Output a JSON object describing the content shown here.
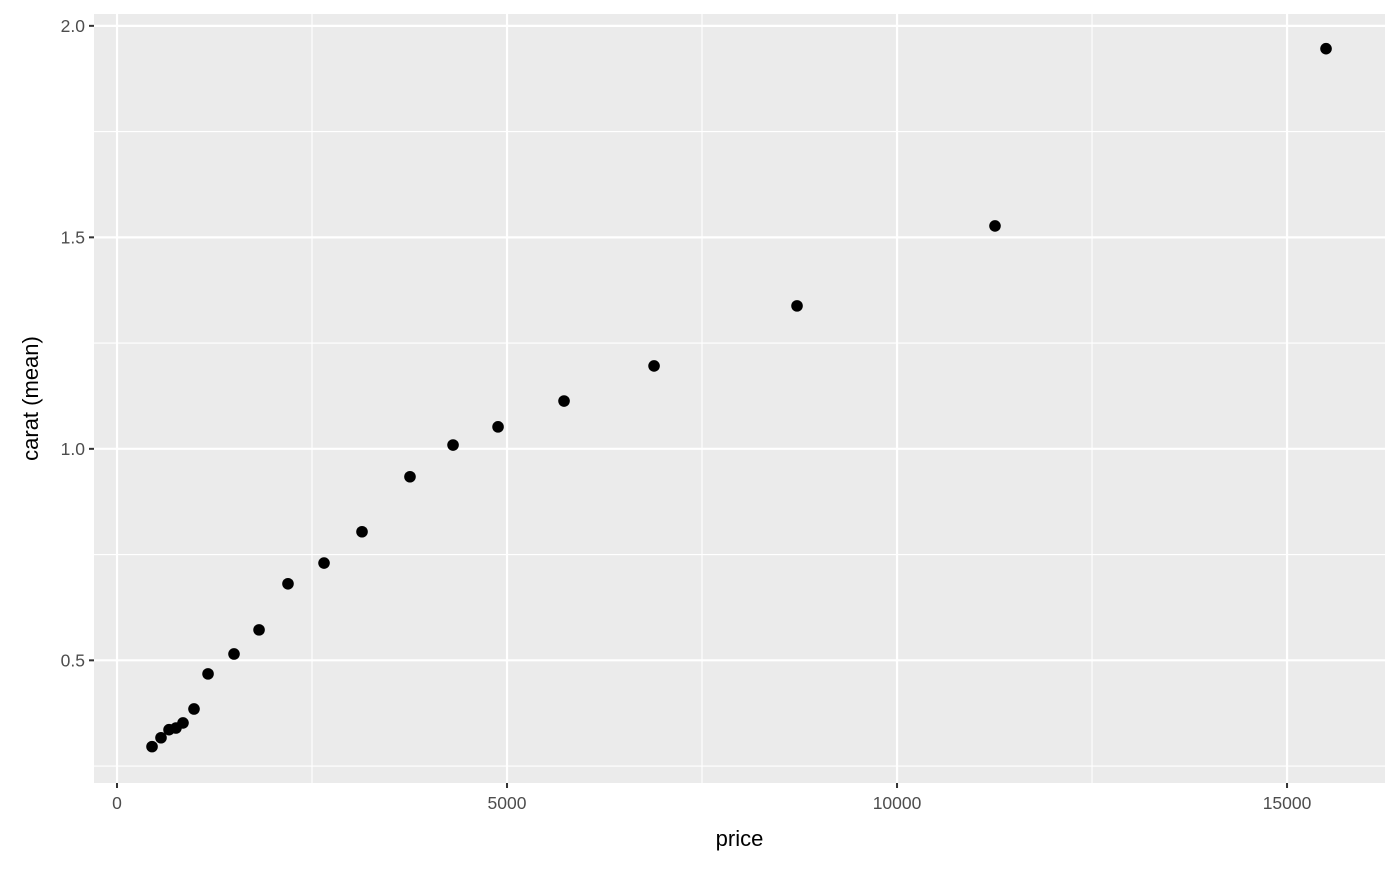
{
  "chart_data": {
    "type": "scatter",
    "title": "",
    "xlabel": "price",
    "ylabel": "carat (mean)",
    "xlim": [
      -295,
      16256
    ],
    "ylim": [
      0.21,
      2.028
    ],
    "x_ticks": [
      0,
      5000,
      10000,
      15000
    ],
    "x_tick_labels": [
      "0",
      "5000",
      "10000",
      "15000"
    ],
    "y_ticks": [
      0.5,
      1.0,
      1.5,
      2.0
    ],
    "y_tick_labels": [
      "0.5",
      "1.0",
      "1.5",
      "2.0"
    ],
    "grid": true,
    "panel_background": "#EBEBEB",
    "point_color": "#000000",
    "points": [
      {
        "x": 449,
        "y": 0.296
      },
      {
        "x": 564,
        "y": 0.317
      },
      {
        "x": 667,
        "y": 0.336
      },
      {
        "x": 756,
        "y": 0.34
      },
      {
        "x": 846,
        "y": 0.352
      },
      {
        "x": 987,
        "y": 0.385
      },
      {
        "x": 1167,
        "y": 0.468
      },
      {
        "x": 1500,
        "y": 0.515
      },
      {
        "x": 1821,
        "y": 0.572
      },
      {
        "x": 2192,
        "y": 0.681
      },
      {
        "x": 2654,
        "y": 0.73
      },
      {
        "x": 3141,
        "y": 0.804
      },
      {
        "x": 3756,
        "y": 0.934
      },
      {
        "x": 4308,
        "y": 1.009
      },
      {
        "x": 4885,
        "y": 1.052
      },
      {
        "x": 5731,
        "y": 1.113
      },
      {
        "x": 6885,
        "y": 1.196
      },
      {
        "x": 8718,
        "y": 1.338
      },
      {
        "x": 11256,
        "y": 1.527
      },
      {
        "x": 15500,
        "y": 1.946
      }
    ]
  }
}
